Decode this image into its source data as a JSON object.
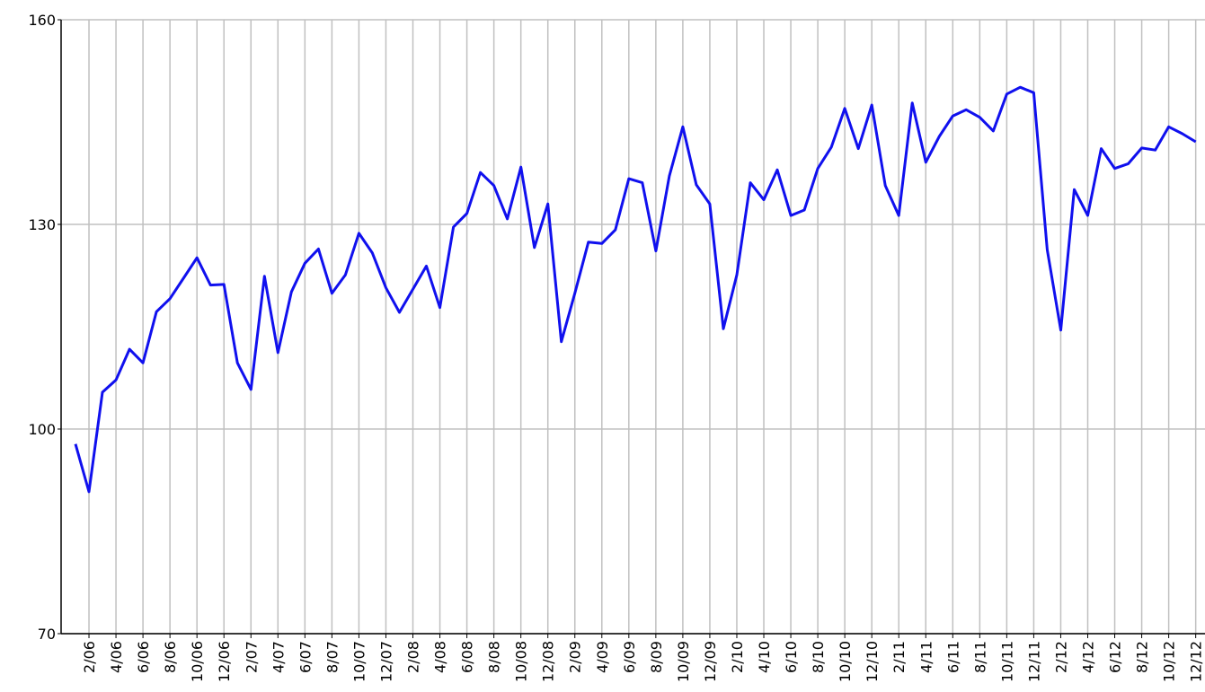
{
  "chart_data": {
    "type": "line",
    "categories": [
      null,
      "2/06",
      null,
      "4/06",
      null,
      "6/06",
      null,
      "8/06",
      null,
      "10/06",
      null,
      "12/06",
      null,
      "2/07",
      null,
      "4/07",
      null,
      "6/07",
      null,
      "8/07",
      null,
      "10/07",
      null,
      "12/07",
      null,
      "2/08",
      null,
      "4/08",
      null,
      "6/08",
      null,
      "8/08",
      null,
      "10/08",
      null,
      "12/08",
      null,
      "2/09",
      null,
      "4/09",
      null,
      "6/09",
      null,
      "8/09",
      null,
      "10/09",
      null,
      "12/09",
      null,
      "2/10",
      null,
      "4/10",
      null,
      "6/10",
      null,
      "8/10",
      null,
      "10/10",
      null,
      "12/10",
      null,
      "2/11",
      null,
      "4/11",
      null,
      "6/11",
      null,
      "8/11",
      null,
      "10/11",
      null,
      "12/11",
      null,
      "2/12",
      null,
      "4/12",
      null,
      "6/12",
      null,
      "8/12",
      null,
      "10/12",
      null,
      "12/12"
    ],
    "values": [
      97.8,
      90.8,
      105.4,
      107.2,
      111.7,
      109.7,
      117.2,
      119.1,
      122.1,
      125.1,
      121.1,
      121.2,
      109.7,
      105.8,
      122.4,
      111.2,
      120.1,
      124.3,
      126.4,
      119.9,
      122.6,
      128.7,
      125.8,
      120.7,
      117.1,
      120.5,
      123.9,
      117.8,
      129.6,
      131.6,
      137.6,
      135.7,
      130.8,
      138.4,
      126.6,
      133.0,
      112.8,
      119.9,
      127.4,
      127.2,
      129.2,
      136.7,
      136.1,
      126.1,
      137.1,
      144.3,
      135.8,
      133.0,
      114.7,
      122.6,
      136.1,
      133.6,
      138.0,
      131.3,
      132.1,
      138.2,
      141.3,
      147.0,
      141.1,
      147.5,
      135.7,
      131.3,
      147.8,
      139.1,
      142.9,
      145.9,
      146.8,
      145.7,
      143.7,
      149.1,
      150.1,
      149.3,
      126.3,
      114.5,
      135.1,
      131.3,
      141.1,
      138.2,
      138.9,
      141.2,
      140.9,
      144.3,
      143.3,
      142.1
    ],
    "color": "#1010ee",
    "ylim": [
      70,
      160
    ],
    "yticks": [
      70,
      100,
      130,
      160
    ],
    "grid": true
  }
}
